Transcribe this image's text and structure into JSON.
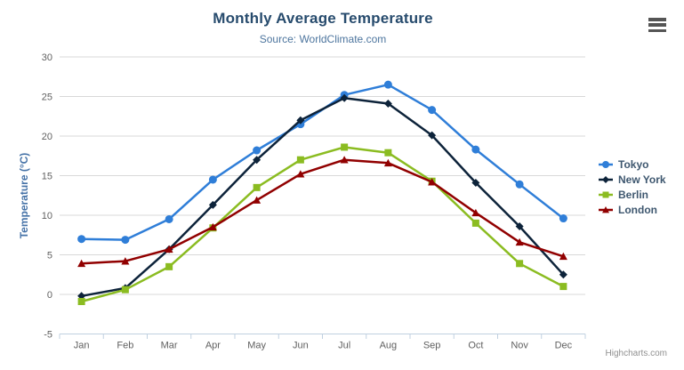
{
  "header": {
    "title": "Monthly Average Temperature",
    "subtitle": "Source: WorldClimate.com"
  },
  "icons": {
    "context_menu": "hamburger-icon"
  },
  "credit": "Highcharts.com",
  "colors": {
    "title": "#274b6d",
    "subtitle": "#4d759e",
    "axis_label": "#606060",
    "y_axis_title": "#4572a7",
    "gridline": "#d8d8d8",
    "axis_line": "#c0d0e0",
    "legend_text": "#3e576f",
    "credit": "#909090",
    "menu_icon": "#555555",
    "background": "#ffffff"
  },
  "chart_data": {
    "type": "line",
    "title": "Monthly Average Temperature",
    "subtitle": "Source: WorldClimate.com",
    "xlabel": "",
    "ylabel": "Temperature (°C)",
    "categories": [
      "Jan",
      "Feb",
      "Mar",
      "Apr",
      "May",
      "Jun",
      "Jul",
      "Aug",
      "Sep",
      "Oct",
      "Nov",
      "Dec"
    ],
    "ylim": [
      -5,
      30
    ],
    "ytick_interval": 5,
    "ytick_labels": [
      "-5",
      "0",
      "5",
      "10",
      "15",
      "20",
      "25",
      "30"
    ],
    "grid": true,
    "legend_position": "right",
    "series": [
      {
        "name": "Tokyo",
        "color": "#2f7ed8",
        "marker": "circle",
        "values": [
          7.0,
          6.9,
          9.5,
          14.5,
          18.2,
          21.5,
          25.2,
          26.5,
          23.3,
          18.3,
          13.9,
          9.6
        ]
      },
      {
        "name": "New York",
        "color": "#0d233a",
        "marker": "diamond",
        "values": [
          -0.2,
          0.8,
          5.7,
          11.3,
          17.0,
          22.0,
          24.8,
          24.1,
          20.1,
          14.1,
          8.6,
          2.5
        ]
      },
      {
        "name": "Berlin",
        "color": "#8bbc21",
        "marker": "square",
        "values": [
          -0.9,
          0.6,
          3.5,
          8.4,
          13.5,
          17.0,
          18.6,
          17.9,
          14.3,
          9.0,
          3.9,
          1.0
        ]
      },
      {
        "name": "London",
        "color": "#910000",
        "marker": "triangle",
        "values": [
          3.9,
          4.2,
          5.7,
          8.5,
          11.9,
          15.2,
          17.0,
          16.6,
          14.2,
          10.3,
          6.6,
          4.8
        ]
      }
    ]
  }
}
